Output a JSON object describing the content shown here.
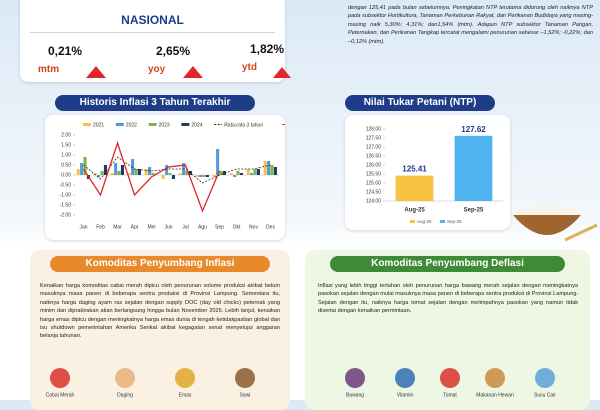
{
  "nasional": {
    "title": "NASIONAL",
    "stats": [
      {
        "value": "0,21%",
        "label": "mtm"
      },
      {
        "value": "2,65%",
        "label": "yoy"
      },
      {
        "value": "1,82%",
        "label": "ytd"
      }
    ]
  },
  "ntp_text": "dengan 125,41 pada bulan sebelumnya. Peningkatan NTP terutama didorong oleh naiknya NTP pada subsektor Hortikultura, Tanaman Perkebunan Rakyat, dan Perikanan Budidaya yang masing-masing naik 5,30%; 4,31%; dan1,54% (mtm). Adapun NTP subsektor Tanaman Pangan, Peternakan, dan Perikanan Tangkap tercatat mengalami penurunan sebesar –1,52%; -0,22%; dan –0,12% (mtm).",
  "chart_data": [
    {
      "type": "bar",
      "title": "Historis Inflasi 3 Tahun Terakhir",
      "categories": [
        "Jan",
        "Feb",
        "Mar",
        "Apr",
        "Mei",
        "Jun",
        "Jul",
        "Agu",
        "Sep",
        "Okt",
        "Nov",
        "Des"
      ],
      "series": [
        {
          "name": "2021",
          "type": "bar",
          "color": "#f5c242",
          "values": [
            0.3,
            0.1,
            0.1,
            0.1,
            0.3,
            -0.2,
            0.1,
            -0.1,
            -0.1,
            0.1,
            0.3,
            0.7
          ]
        },
        {
          "name": "2022",
          "type": "bar",
          "color": "#4f9bd8",
          "values": [
            0.6,
            -0.1,
            0.6,
            0.8,
            0.4,
            0.5,
            0.6,
            -0.1,
            1.3,
            -0.1,
            0.1,
            0.7
          ]
        },
        {
          "name": "2023",
          "type": "bar",
          "color": "#7ab648",
          "values": [
            0.9,
            0.2,
            0.2,
            0.3,
            0.1,
            0.1,
            0.2,
            -0.1,
            0.2,
            0.2,
            0.3,
            0.5
          ]
        },
        {
          "name": "2024",
          "type": "bar",
          "color": "#1f3864",
          "values": [
            -0.2,
            0.5,
            0.5,
            0.3,
            0.0,
            -0.2,
            0.2,
            -0.1,
            0.2,
            0.1,
            0.3,
            0.4
          ]
        },
        {
          "name": "Rata-rata 3 tahun",
          "type": "line",
          "dash": true,
          "color": "#222222",
          "values": [
            0.5,
            -0.2,
            0.9,
            0.3,
            0.2,
            0.3,
            0.3,
            -0.4,
            0.0,
            0.3,
            0.3,
            0.5
          ]
        },
        {
          "name": "2025",
          "type": "line",
          "dash": false,
          "color": "#e0262b",
          "values": [
            0.3,
            -1.0,
            1.6,
            -1.0,
            -0.1,
            0.4,
            0.5,
            -1.8,
            0.21,
            null,
            null,
            null
          ]
        }
      ],
      "ylim": [
        -2,
        2
      ],
      "yticks": [
        {
          "value": 2,
          "label": "2.00"
        },
        {
          "value": 1.5,
          "label": "1.50"
        },
        {
          "value": 1,
          "label": "1.00"
        },
        {
          "value": 0.5,
          "label": "0.50"
        },
        {
          "value": 0,
          "label": "0.00"
        },
        {
          "value": -0.5,
          "label": "-0.50"
        },
        {
          "value": -1,
          "label": "-1.00"
        },
        {
          "value": -1.5,
          "label": "-1.50"
        },
        {
          "value": -2,
          "label": "-2.00"
        }
      ],
      "grid": false
    },
    {
      "type": "bar",
      "title": "Nilai Tukar Petani (NTP)",
      "categories": [
        "Aug-25",
        "Sep-25"
      ],
      "values": [
        125.41,
        127.62
      ],
      "colors": [
        "#f5c242",
        "#4fb3f0"
      ],
      "ylim": [
        124,
        128
      ],
      "yticks": [
        {
          "value": 124,
          "label": "124.00"
        },
        {
          "value": 124.5,
          "label": "124.50"
        },
        {
          "value": 125,
          "label": "125.00"
        },
        {
          "value": 125.5,
          "label": "125.50"
        },
        {
          "value": 126,
          "label": "126.00"
        },
        {
          "value": 126.5,
          "label": "126.50"
        },
        {
          "value": 127,
          "label": "127.00"
        },
        {
          "value": 127.5,
          "label": "127.50"
        },
        {
          "value": 128,
          "label": "128.00"
        }
      ],
      "grid": false
    }
  ],
  "inflasi": {
    "title": "Komoditas Penyumbang Inflasi",
    "text": "Kenaikan harga komoditas cabai merah dipicu oleh penurunan volume produksi akibat belum masuknya masa panen di beberapa sentra produksi di Provinsi Lampung. Sementara itu, naiknya harga daging ayam ras sejalan dengan supply DOC (day old chicks) peternak yang minim dan diprakirakan akan berlangsung hingga bulan November 2025. Lebih lanjut, kenaikan harga emas dipicu dengan meningkatnya harga emas dunia di tengah ketidakpastian global dan isu shutdown pemerintahan Amerika Serikat akibat kegagalan senat menyetujui anggaran belanja tahunan.",
    "items": [
      "Cabai Merah",
      "Daging",
      "Emas",
      "Sawi"
    ]
  },
  "deflasi": {
    "title": "Komoditas Penyumbang Deflasi",
    "text": "Inflasi yang lebih tinggi tertahan oleh penurunan harga bawang merah sejalan dengan meningkatnya pasokan sejalan dengan mulai masuknya masa panen di beberapa sentra produksi di Provinsi Lampung. Sejalan dengan itu, naiknya harga tomat sejalan dengan melimpahnya pasokan yang namun tidak disertai dengan kenaikan permintaan.",
    "items": [
      "Bawang",
      "Vitamin",
      "Tomat",
      "Makanan Hewan",
      "Susu Cair"
    ]
  }
}
